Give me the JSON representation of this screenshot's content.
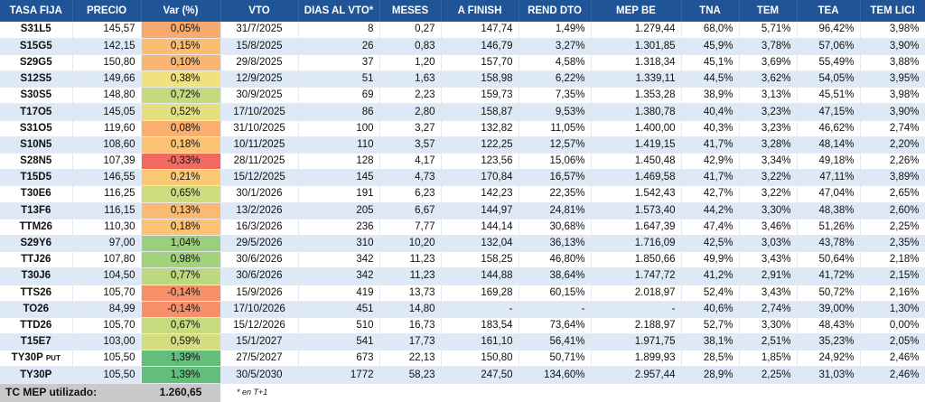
{
  "headers": [
    "TASA FIJA",
    "PRECIO",
    "Var (%)",
    "VTO",
    "DIAS AL VTO*",
    "MESES",
    "A FINISH",
    "REND DTO",
    "MEP BE",
    "TNA",
    "TEM",
    "TEA",
    "TEM LICI"
  ],
  "rows": [
    {
      "ticker": "S31L5",
      "suffix": "",
      "precio": "145,57",
      "var": "0,05%",
      "var_color": "#f9a86e",
      "vto": "31/7/2025",
      "dias": "8",
      "meses": "0,27",
      "finish": "147,74",
      "rend": "1,49%",
      "mep": "1.279,44",
      "tna": "68,0%",
      "tem": "5,71%",
      "tea": "96,42%",
      "lici": "3,98%"
    },
    {
      "ticker": "S15G5",
      "suffix": "",
      "precio": "142,15",
      "var": "0,15%",
      "var_color": "#fbbd72",
      "vto": "15/8/2025",
      "dias": "26",
      "meses": "0,83",
      "finish": "146,79",
      "rend": "3,27%",
      "mep": "1.301,85",
      "tna": "45,9%",
      "tem": "3,78%",
      "tea": "57,06%",
      "lici": "3,90%"
    },
    {
      "ticker": "S29G5",
      "suffix": "",
      "precio": "150,80",
      "var": "0,10%",
      "var_color": "#fab570",
      "vto": "29/8/2025",
      "dias": "37",
      "meses": "1,20",
      "finish": "157,70",
      "rend": "4,58%",
      "mep": "1.318,34",
      "tna": "45,1%",
      "tem": "3,69%",
      "tea": "55,49%",
      "lici": "3,88%"
    },
    {
      "ticker": "S12S5",
      "suffix": "",
      "precio": "149,66",
      "var": "0,38%",
      "var_color": "#f1e27e",
      "vto": "12/9/2025",
      "dias": "51",
      "meses": "1,63",
      "finish": "158,98",
      "rend": "6,22%",
      "mep": "1.339,11",
      "tna": "44,5%",
      "tem": "3,62%",
      "tea": "54,05%",
      "lici": "3,95%"
    },
    {
      "ticker": "S30S5",
      "suffix": "",
      "precio": "148,80",
      "var": "0,72%",
      "var_color": "#c4da7f",
      "vto": "30/9/2025",
      "dias": "69",
      "meses": "2,23",
      "finish": "159,73",
      "rend": "7,35%",
      "mep": "1.353,28",
      "tna": "38,9%",
      "tem": "3,13%",
      "tea": "45,51%",
      "lici": "3,98%"
    },
    {
      "ticker": "T17O5",
      "suffix": "",
      "precio": "145,05",
      "var": "0,52%",
      "var_color": "#e4e07f",
      "vto": "17/10/2025",
      "dias": "86",
      "meses": "2,80",
      "finish": "158,87",
      "rend": "9,53%",
      "mep": "1.380,78",
      "tna": "40,4%",
      "tem": "3,23%",
      "tea": "47,15%",
      "lici": "3,90%"
    },
    {
      "ticker": "S31O5",
      "suffix": "",
      "precio": "119,60",
      "var": "0,08%",
      "var_color": "#faaf6f",
      "vto": "31/10/2025",
      "dias": "100",
      "meses": "3,27",
      "finish": "132,82",
      "rend": "11,05%",
      "mep": "1.400,00",
      "tna": "40,3%",
      "tem": "3,23%",
      "tea": "46,62%",
      "lici": "2,74%"
    },
    {
      "ticker": "S10N5",
      "suffix": "",
      "precio": "108,60",
      "var": "0,18%",
      "var_color": "#fcc374",
      "vto": "10/11/2025",
      "dias": "110",
      "meses": "3,57",
      "finish": "122,25",
      "rend": "12,57%",
      "mep": "1.419,15",
      "tna": "41,7%",
      "tem": "3,28%",
      "tea": "48,14%",
      "lici": "2,20%"
    },
    {
      "ticker": "S28N5",
      "suffix": "",
      "precio": "107,39",
      "var": "-0,33%",
      "var_color": "#f26a5f",
      "vto": "28/11/2025",
      "dias": "128",
      "meses": "4,17",
      "finish": "123,56",
      "rend": "15,06%",
      "mep": "1.450,48",
      "tna": "42,9%",
      "tem": "3,34%",
      "tea": "49,18%",
      "lici": "2,26%"
    },
    {
      "ticker": "T15D5",
      "suffix": "",
      "precio": "146,55",
      "var": "0,21%",
      "var_color": "#fbc874",
      "vto": "15/12/2025",
      "dias": "145",
      "meses": "4,73",
      "finish": "170,84",
      "rend": "16,57%",
      "mep": "1.469,58",
      "tna": "41,7%",
      "tem": "3,22%",
      "tea": "47,11%",
      "lici": "3,89%"
    },
    {
      "ticker": "T30E6",
      "suffix": "",
      "precio": "116,25",
      "var": "0,65%",
      "var_color": "#ccdc7f",
      "vto": "30/1/2026",
      "dias": "191",
      "meses": "6,23",
      "finish": "142,23",
      "rend": "22,35%",
      "mep": "1.542,43",
      "tna": "42,7%",
      "tem": "3,22%",
      "tea": "47,04%",
      "lici": "2,65%"
    },
    {
      "ticker": "T13F6",
      "suffix": "",
      "precio": "116,15",
      "var": "0,13%",
      "var_color": "#fbb972",
      "vto": "13/2/2026",
      "dias": "205",
      "meses": "6,67",
      "finish": "144,97",
      "rend": "24,81%",
      "mep": "1.573,40",
      "tna": "44,2%",
      "tem": "3,30%",
      "tea": "48,38%",
      "lici": "2,60%"
    },
    {
      "ticker": "TTM26",
      "suffix": "",
      "precio": "110,30",
      "var": "0,18%",
      "var_color": "#fcc374",
      "vto": "16/3/2026",
      "dias": "236",
      "meses": "7,77",
      "finish": "144,14",
      "rend": "30,68%",
      "mep": "1.647,39",
      "tna": "47,4%",
      "tem": "3,46%",
      "tea": "51,26%",
      "lici": "2,25%"
    },
    {
      "ticker": "S29Y6",
      "suffix": "",
      "precio": "97,00",
      "var": "1,04%",
      "var_color": "#9ccf7c",
      "vto": "29/5/2026",
      "dias": "310",
      "meses": "10,20",
      "finish": "132,04",
      "rend": "36,13%",
      "mep": "1.716,09",
      "tna": "42,5%",
      "tem": "3,03%",
      "tea": "43,78%",
      "lici": "2,35%"
    },
    {
      "ticker": "TTJ26",
      "suffix": "",
      "precio": "107,80",
      "var": "0,98%",
      "var_color": "#a3d17c",
      "vto": "30/6/2026",
      "dias": "342",
      "meses": "11,23",
      "finish": "158,25",
      "rend": "46,80%",
      "mep": "1.850,66",
      "tna": "49,9%",
      "tem": "3,43%",
      "tea": "50,64%",
      "lici": "2,18%"
    },
    {
      "ticker": "T30J6",
      "suffix": "",
      "precio": "104,50",
      "var": "0,77%",
      "var_color": "#bdd87e",
      "vto": "30/6/2026",
      "dias": "342",
      "meses": "11,23",
      "finish": "144,88",
      "rend": "38,64%",
      "mep": "1.747,72",
      "tna": "41,2%",
      "tem": "2,91%",
      "tea": "41,72%",
      "lici": "2,15%"
    },
    {
      "ticker": "TTS26",
      "suffix": "",
      "precio": "105,70",
      "var": "-0,14%",
      "var_color": "#f6906a",
      "vto": "15/9/2026",
      "dias": "419",
      "meses": "13,73",
      "finish": "169,28",
      "rend": "60,15%",
      "mep": "2.018,97",
      "tna": "52,4%",
      "tem": "3,43%",
      "tea": "50,72%",
      "lici": "2,16%"
    },
    {
      "ticker": "TO26",
      "suffix": "",
      "precio": "84,99",
      "var": "-0,14%",
      "var_color": "#f6906a",
      "vto": "17/10/2026",
      "dias": "451",
      "meses": "14,80",
      "finish": "-",
      "rend": "-",
      "mep": "-",
      "tna": "40,6%",
      "tem": "2,74%",
      "tea": "39,00%",
      "lici": "1,30%"
    },
    {
      "ticker": "TTD26",
      "suffix": "",
      "precio": "105,70",
      "var": "0,67%",
      "var_color": "#c9db7f",
      "vto": "15/12/2026",
      "dias": "510",
      "meses": "16,73",
      "finish": "183,54",
      "rend": "73,64%",
      "mep": "2.188,97",
      "tna": "52,7%",
      "tem": "3,30%",
      "tea": "48,43%",
      "lici": "0,00%"
    },
    {
      "ticker": "T15E7",
      "suffix": "",
      "precio": "103,00",
      "var": "0,59%",
      "var_color": "#d5de7f",
      "vto": "15/1/2027",
      "dias": "541",
      "meses": "17,73",
      "finish": "161,10",
      "rend": "56,41%",
      "mep": "1.971,75",
      "tna": "38,1%",
      "tem": "2,51%",
      "tea": "35,23%",
      "lici": "2,05%"
    },
    {
      "ticker": "TY30P",
      "suffix": "PUT",
      "precio": "105,50",
      "var": "1,39%",
      "var_color": "#63be7b",
      "vto": "27/5/2027",
      "dias": "673",
      "meses": "22,13",
      "finish": "150,80",
      "rend": "50,71%",
      "mep": "1.899,93",
      "tna": "28,5%",
      "tem": "1,85%",
      "tea": "24,92%",
      "lici": "2,46%"
    },
    {
      "ticker": "TY30P",
      "suffix": "",
      "precio": "105,50",
      "var": "1,39%",
      "var_color": "#63be7b",
      "vto": "30/5/2030",
      "dias": "1772",
      "meses": "58,23",
      "finish": "247,50",
      "rend": "134,60%",
      "mep": "2.957,44",
      "tna": "28,9%",
      "tem": "2,25%",
      "tea": "31,03%",
      "lici": "2,46%"
    }
  ],
  "footer": {
    "label": "TC MEP utilizado:",
    "value": "1.260,65",
    "note": "* en T+1"
  }
}
